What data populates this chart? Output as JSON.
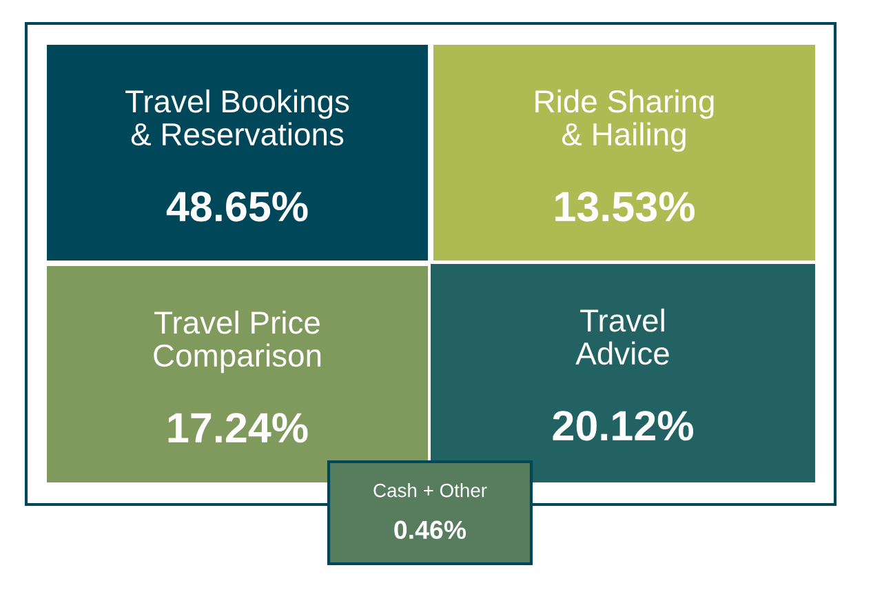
{
  "chart_data": {
    "type": "other",
    "categories": [
      "Travel Bookings\n& Reservations",
      "Ride Sharing\n& Hailing",
      "Travel Price\nComparison",
      "Travel\nAdvice",
      "Cash + Other"
    ],
    "values": [
      48.65,
      13.53,
      17.24,
      20.12,
      0.46
    ],
    "value_labels": [
      "48.65%",
      "13.53%",
      "17.24%",
      "20.12%",
      "0.46%"
    ],
    "colors": [
      "#00475a",
      "#adbb53",
      "#7f9a5c",
      "#236262",
      "#577c5e"
    ]
  }
}
